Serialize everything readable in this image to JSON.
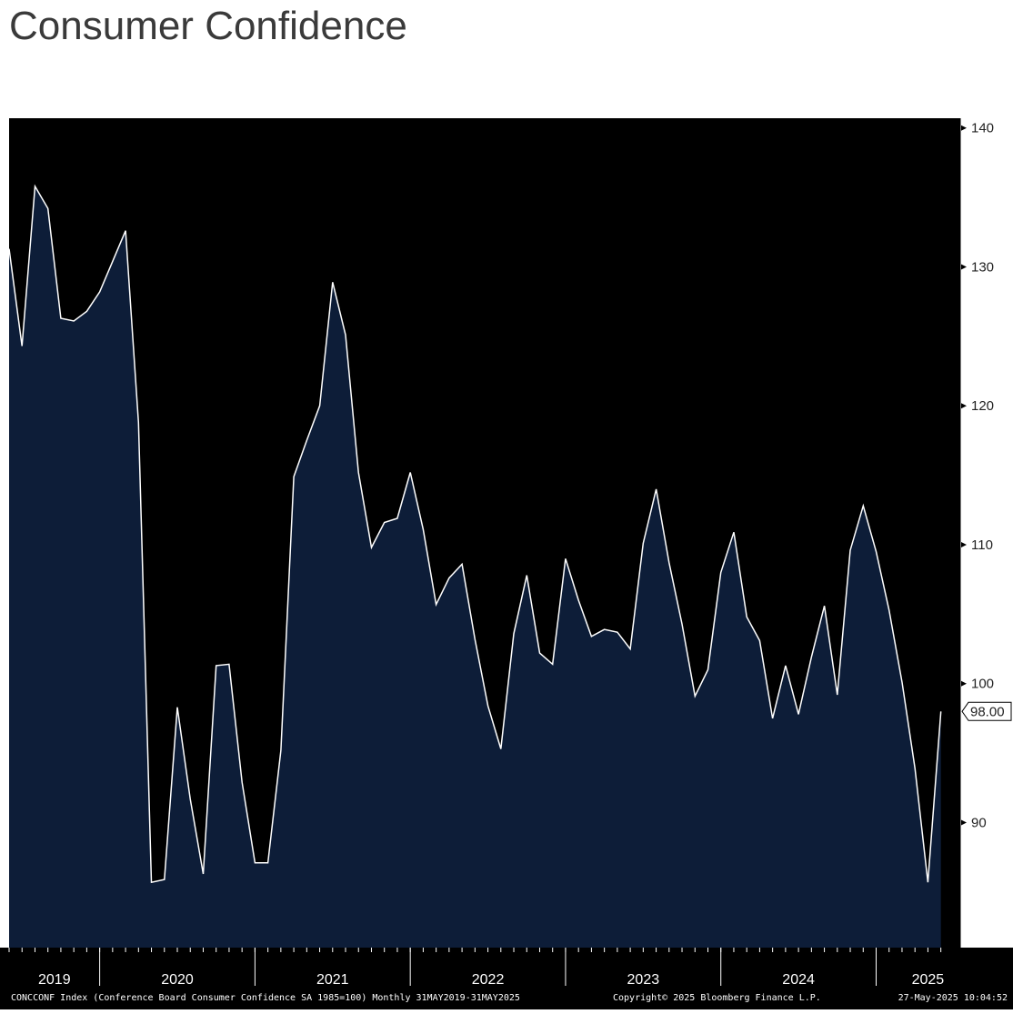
{
  "title": "Consumer Confidence",
  "chart_data": {
    "type": "area",
    "title": "Consumer Confidence",
    "xlabel": "",
    "ylabel": "",
    "ylim": [
      81,
      140.7
    ],
    "xlim": [
      0,
      73.5
    ],
    "y_ticks": [
      90,
      100,
      110,
      120,
      130,
      140
    ],
    "x_year_labels": [
      {
        "label": "2019",
        "month_index": 3.5
      },
      {
        "label": "2020",
        "month_index": 13
      },
      {
        "label": "2021",
        "month_index": 25
      },
      {
        "label": "2022",
        "month_index": 37
      },
      {
        "label": "2023",
        "month_index": 49
      },
      {
        "label": "2024",
        "month_index": 61
      },
      {
        "label": "2025",
        "month_index": 71
      }
    ],
    "x_year_boundaries": [
      7,
      19,
      31,
      43,
      55,
      67
    ],
    "last_value_label": "98.00",
    "colors": {
      "background": "#000000",
      "fill": "#0d1d38",
      "line": "#ffffff",
      "axis": "#ffffff"
    },
    "x": [
      "May 2019",
      "Jun 2019",
      "Jul 2019",
      "Aug 2019",
      "Sep 2019",
      "Oct 2019",
      "Nov 2019",
      "Dec 2019",
      "Jan 2020",
      "Feb 2020",
      "Mar 2020",
      "Apr 2020",
      "May 2020",
      "Jun 2020",
      "Jul 2020",
      "Aug 2020",
      "Sep 2020",
      "Oct 2020",
      "Nov 2020",
      "Dec 2020",
      "Jan 2021",
      "Feb 2021",
      "Mar 2021",
      "Apr 2021",
      "May 2021",
      "Jun 2021",
      "Jul 2021",
      "Aug 2021",
      "Sep 2021",
      "Oct 2021",
      "Nov 2021",
      "Dec 2021",
      "Jan 2022",
      "Feb 2022",
      "Mar 2022",
      "Apr 2022",
      "May 2022",
      "Jun 2022",
      "Jul 2022",
      "Aug 2022",
      "Sep 2022",
      "Oct 2022",
      "Nov 2022",
      "Dec 2022",
      "Jan 2023",
      "Feb 2023",
      "Mar 2023",
      "Apr 2023",
      "May 2023",
      "Jun 2023",
      "Jul 2023",
      "Aug 2023",
      "Sep 2023",
      "Oct 2023",
      "Nov 2023",
      "Dec 2023",
      "Jan 2024",
      "Feb 2024",
      "Mar 2024",
      "Apr 2024",
      "May 2024",
      "Jun 2024",
      "Jul 2024",
      "Aug 2024",
      "Sep 2024",
      "Oct 2024",
      "Nov 2024",
      "Dec 2024",
      "Jan 2025",
      "Feb 2025",
      "Mar 2025",
      "Apr 2025",
      "May 2025"
    ],
    "series": [
      {
        "values": [
          131.3,
          124.3,
          135.8,
          134.2,
          126.3,
          126.1,
          126.8,
          128.2,
          130.4,
          132.6,
          118.8,
          85.7,
          85.9,
          98.3,
          91.7,
          86.3,
          101.3,
          101.4,
          92.9,
          87.1,
          87.1,
          95.2,
          114.9,
          117.5,
          120.0,
          128.9,
          125.1,
          115.2,
          109.8,
          111.6,
          111.9,
          115.2,
          111.1,
          105.7,
          107.6,
          108.6,
          103.2,
          98.4,
          95.3,
          103.6,
          107.8,
          102.2,
          101.4,
          109.0,
          106.0,
          103.4,
          103.9,
          103.7,
          102.5,
          110.1,
          114.0,
          108.7,
          104.3,
          99.1,
          101.0,
          108.0,
          110.9,
          104.8,
          103.1,
          97.5,
          101.3,
          97.8,
          101.9,
          105.6,
          99.2,
          109.6,
          112.8,
          109.5,
          105.3,
          100.1,
          93.9,
          85.7,
          98.0
        ]
      }
    ]
  },
  "footer": {
    "left": "CONCCONF Index (Conference Board Consumer Confidence SA 1985=100)  Monthly 31MAY2019-31MAY2025",
    "center": "Copyright© 2025 Bloomberg Finance L.P.",
    "right": "27-May-2025 10:04:52"
  }
}
